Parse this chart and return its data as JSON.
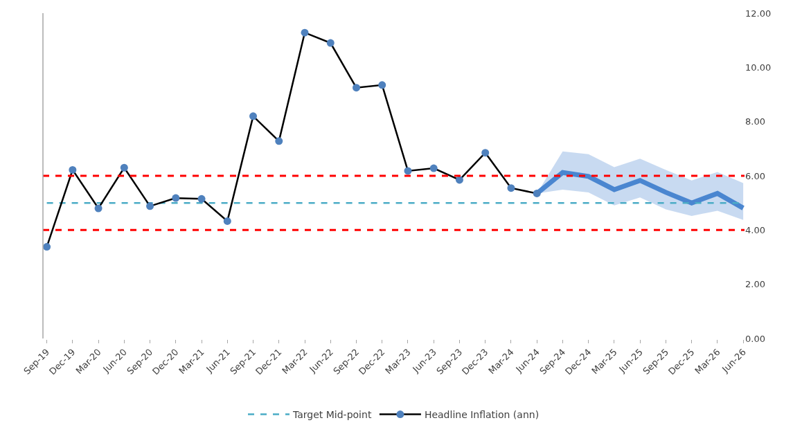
{
  "chart_data": {
    "type": "line",
    "categories": [
      "Sep-19",
      "Dec-19",
      "Mar-20",
      "Jun-20",
      "Sep-20",
      "Dec-20",
      "Mar-21",
      "Jun-21",
      "Sep-21",
      "Dec-21",
      "Mar-22",
      "Jun-22",
      "Sep-22",
      "Dec-22",
      "Mar-23",
      "Jun-23",
      "Sep-23",
      "Dec-23",
      "Mar-24",
      "Jun-24",
      "Sep-24",
      "Dec-24",
      "Mar-25",
      "Jun-25",
      "Sep-25",
      "Dec-25",
      "Mar-26",
      "Jun-26"
    ],
    "series": [
      {
        "name": "Target Mid-point",
        "color": "#4bacc6",
        "line_style": "dashed",
        "marker": "none",
        "values": [
          5,
          5,
          5,
          5,
          5,
          5,
          5,
          5,
          5,
          5,
          5,
          5,
          5,
          5,
          5,
          5,
          5,
          5,
          5,
          5,
          5,
          5,
          5,
          5,
          5,
          5,
          5,
          5
        ]
      },
      {
        "name": "Headline Inflation (ann)",
        "color": "#000000",
        "marker": "circle",
        "colors": [
          "#4f81bd",
          "#4f81bd",
          "#4f81bd",
          "#4f81bd",
          "#4f81bd",
          "#4f81bd",
          "#4f81bd",
          "#4f81bd",
          "#4f81bd",
          "#4f81bd",
          "#4f81bd",
          "#4f81bd",
          "#4f81bd",
          "#4f81bd",
          "#4f81bd",
          "#4f81bd",
          "#4f81bd",
          "#4f81bd",
          "#4f81bd",
          "#4f81bd",
          null,
          null,
          null,
          null,
          null,
          null,
          null,
          null
        ],
        "values": [
          3.38,
          6.22,
          4.8,
          6.3,
          4.88,
          5.18,
          5.15,
          4.33,
          8.2,
          7.28,
          11.28,
          10.9,
          9.25,
          9.35,
          6.18,
          6.28,
          5.85,
          6.85,
          5.55,
          5.35,
          null,
          null,
          null,
          null,
          null,
          null,
          null,
          null
        ]
      },
      {
        "color": "#4a86d0",
        "marker": "none",
        "values": [
          null,
          null,
          null,
          null,
          null,
          null,
          null,
          null,
          null,
          null,
          null,
          null,
          null,
          null,
          null,
          null,
          null,
          null,
          null,
          5.35,
          6.12,
          5.98,
          5.49,
          5.83,
          5.39,
          5.0,
          5.35,
          4.81
        ],
        "lower": [
          null,
          null,
          null,
          null,
          null,
          null,
          null,
          null,
          null,
          null,
          null,
          null,
          null,
          null,
          null,
          null,
          null,
          null,
          null,
          5.35,
          5.49,
          5.39,
          4.91,
          5.2,
          4.76,
          4.52,
          4.71,
          4.37
        ],
        "upper": [
          null,
          null,
          null,
          null,
          null,
          null,
          null,
          null,
          null,
          null,
          null,
          null,
          null,
          null,
          null,
          null,
          null,
          null,
          null,
          5.35,
          6.9,
          6.8,
          6.32,
          6.63,
          6.22,
          5.83,
          6.14,
          5.73
        ]
      }
    ],
    "ylim": [
      0,
      12
    ],
    "yticks": [
      {
        "value": 0,
        "label": "0.00"
      },
      {
        "value": 2,
        "label": "2.00"
      },
      {
        "value": 4,
        "label": "4.00"
      },
      {
        "value": 6,
        "label": "6.00"
      },
      {
        "value": 8,
        "label": "8.00"
      },
      {
        "value": 10,
        "label": "10.00"
      },
      {
        "value": 12,
        "label": "12.00"
      }
    ],
    "ref_lines": [
      {
        "axis": "y",
        "value": 6,
        "color": "#ff0000",
        "line_style": "dashed"
      },
      {
        "axis": "y",
        "value": 4,
        "color": "#ff0000",
        "line_style": "dashed"
      }
    ],
    "legend": "bottom"
  }
}
